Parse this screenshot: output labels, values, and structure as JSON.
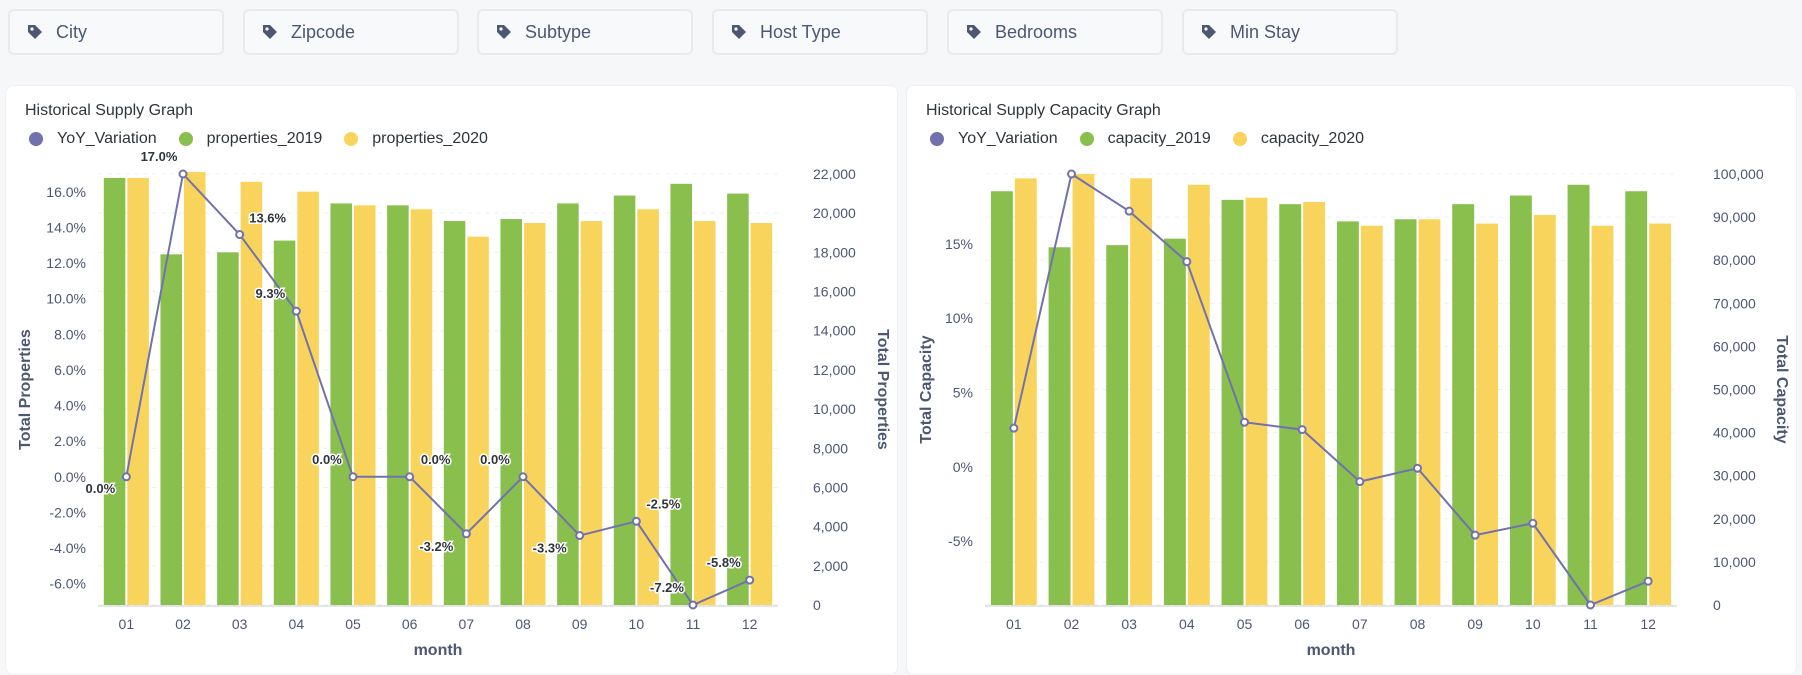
{
  "filters": [
    {
      "label": "City"
    },
    {
      "label": "Zipcode"
    },
    {
      "label": "Subtype"
    },
    {
      "label": "Host Type"
    },
    {
      "label": "Bedrooms"
    },
    {
      "label": "Min Stay"
    }
  ],
  "colors": {
    "line": "#7172ad",
    "bar2019": "#88bf4d",
    "bar2020": "#f9d45c"
  },
  "chart_data": [
    {
      "type": "bar",
      "title": "Historical Supply Graph",
      "xlabel": "month",
      "ylabel_left": "Total Properties",
      "ylabel_right": "Total Properties",
      "categories": [
        "01",
        "02",
        "03",
        "04",
        "05",
        "06",
        "07",
        "08",
        "09",
        "10",
        "11",
        "12"
      ],
      "series": [
        {
          "name": "YoY_Variation",
          "type": "line",
          "axis": "left",
          "values": [
            0.0,
            17.0,
            13.6,
            9.3,
            0.0,
            0.0,
            -3.2,
            0.0,
            -3.3,
            -2.5,
            -7.2,
            -5.8
          ]
        },
        {
          "name": "properties_2019",
          "type": "bar",
          "axis": "right",
          "values": [
            21800,
            17900,
            18000,
            18600,
            20500,
            20400,
            19600,
            19700,
            20500,
            20900,
            21500,
            21000
          ]
        },
        {
          "name": "properties_2020",
          "type": "bar",
          "axis": "right",
          "values": [
            21800,
            22100,
            21600,
            21100,
            20400,
            20200,
            18800,
            19500,
            19600,
            20200,
            19600,
            19500
          ]
        }
      ],
      "data_labels": [
        "0.0%",
        "17.0%",
        "13.6%",
        "9.3%",
        "0.0%",
        "0.0%",
        "-3.2%",
        "0.0%",
        "-3.3%",
        "-2.5%",
        "-7.2%",
        "-5.8%"
      ],
      "left_ticks": [
        "16.0%",
        "14.0%",
        "12.0%",
        "10.0%",
        "8.0%",
        "6.0%",
        "4.0%",
        "2.0%",
        "0.0%",
        "-2.0%",
        "-4.0%",
        "-6.0%"
      ],
      "right_ticks": [
        "22,000",
        "20,000",
        "18,000",
        "16,000",
        "14,000",
        "12,000",
        "10,000",
        "8,000",
        "6,000",
        "4,000",
        "2,000",
        "0"
      ],
      "ylim_left": [
        -7.2,
        17.0
      ],
      "ylim_right": [
        0,
        22000
      ],
      "grid": true,
      "legend": "top-left"
    },
    {
      "type": "bar",
      "title": "Historical Supply Capacity Graph",
      "xlabel": "month",
      "ylabel_left": "Total Capacity",
      "ylabel_right": "Total Capacity",
      "categories": [
        "01",
        "02",
        "03",
        "04",
        "05",
        "06",
        "07",
        "08",
        "09",
        "10",
        "11",
        "12"
      ],
      "series": [
        {
          "name": "YoY_Variation",
          "type": "line",
          "axis": "left",
          "values": [
            2.6,
            19.7,
            17.2,
            13.8,
            3.0,
            2.5,
            -1.0,
            -0.1,
            -4.6,
            -3.8,
            -9.3,
            -7.7
          ]
        },
        {
          "name": "capacity_2019",
          "type": "bar",
          "axis": "right",
          "values": [
            96000,
            83000,
            83500,
            85000,
            94000,
            93000,
            89000,
            89500,
            93000,
            95000,
            97500,
            96000
          ]
        },
        {
          "name": "capacity_2020",
          "type": "bar",
          "axis": "right",
          "values": [
            99000,
            100000,
            99000,
            97500,
            94500,
            93500,
            88000,
            89500,
            88500,
            90500,
            88000,
            88500
          ]
        }
      ],
      "left_ticks": [
        "15%",
        "10%",
        "5%",
        "0%",
        "-5%"
      ],
      "right_ticks": [
        "100,000",
        "90,000",
        "80,000",
        "70,000",
        "60,000",
        "50,000",
        "40,000",
        "30,000",
        "20,000",
        "10,000",
        "0"
      ],
      "ylim_left": [
        -9.3,
        19.7
      ],
      "ylim_right": [
        0,
        100000
      ],
      "grid": true,
      "legend": "top-left"
    }
  ]
}
